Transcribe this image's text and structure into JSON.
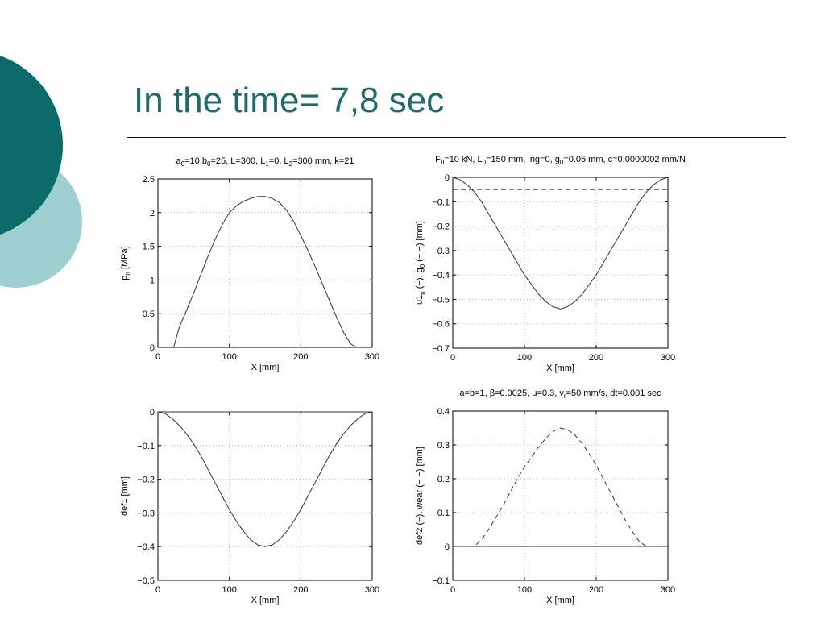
{
  "slide": {
    "title": "In the time= 7,8 sec",
    "colors": {
      "title": "#1f6b6b",
      "circle_dark": "#0b6b6b",
      "circle_light": "#9fd0d0"
    }
  },
  "chart_data": [
    {
      "id": "p1",
      "type": "line",
      "title_parts": [
        [
          "a",
          "0",
          "=10,b",
          "0",
          "=25, L=300, L",
          "1",
          "=0, L",
          "2",
          "=300 mm, k=21"
        ]
      ],
      "title": "a0=10,b0=25, L=300, L1=0, L2=300 mm, k=21",
      "xlabel": "X [mm]",
      "ylabel": "p_n [MPa]",
      "ylabel_main": "p",
      "ylabel_sub": "n",
      "ylabel_tail": " [MPa]",
      "xlim": [
        0,
        300
      ],
      "ylim": [
        0,
        2.5
      ],
      "xticks": [
        0,
        100,
        200,
        300
      ],
      "xtick_labels": [
        "0",
        "100",
        "200",
        "300"
      ],
      "yticks": [
        0,
        0.5,
        1,
        1.5,
        2,
        2.5
      ],
      "ytick_labels": [
        "0",
        "0.5",
        "1",
        "1.5",
        "2",
        "2.5"
      ],
      "grid": true,
      "series": [
        {
          "style": "solid",
          "x": [
            22,
            30,
            40,
            50,
            60,
            70,
            80,
            90,
            100,
            110,
            120,
            130,
            140,
            150,
            160,
            170,
            180,
            190,
            200,
            210,
            220,
            230,
            240,
            250,
            260,
            270,
            278
          ],
          "y": [
            0,
            0.3,
            0.55,
            0.8,
            1.08,
            1.35,
            1.6,
            1.82,
            2.0,
            2.1,
            2.17,
            2.21,
            2.24,
            2.24,
            2.21,
            2.15,
            2.04,
            1.87,
            1.66,
            1.44,
            1.2,
            0.95,
            0.7,
            0.45,
            0.22,
            0.05,
            0
          ]
        }
      ]
    },
    {
      "id": "p2",
      "type": "line",
      "title": "F0=10 kN, L0=150 mm, irig=0, g0=0.05 mm, c=0.0000002 mm/N",
      "title_parts": [
        [
          "F",
          "0",
          "=10 kN, L",
          "0",
          "=150 mm, irig=0, g",
          "0",
          "=0.05 mm, c=0.0000002 mm/N"
        ]
      ],
      "xlabel": "X [mm]",
      "ylabel": "u1_n (−), g_0 (− −) [mm]",
      "ylabel_main": "u1",
      "ylabel_sub": "n",
      "ylabel_tail": " (−), g",
      "ylabel_sub2": "0",
      "ylabel_tail2": " (− −) [mm]",
      "xlim": [
        0,
        300
      ],
      "ylim": [
        -0.7,
        0
      ],
      "xticks": [
        0,
        100,
        200,
        300
      ],
      "xtick_labels": [
        "0",
        "100",
        "200",
        "300"
      ],
      "yticks": [
        0,
        -0.1,
        -0.2,
        -0.3,
        -0.4,
        -0.5,
        -0.6,
        -0.7
      ],
      "ytick_labels": [
        "0",
        "−0.1",
        "−0.2",
        "−0.3",
        "−0.4",
        "−0.5",
        "−0.6",
        "−0.7"
      ],
      "grid": true,
      "series": [
        {
          "style": "solid",
          "x": [
            0,
            10,
            20,
            30,
            40,
            50,
            60,
            70,
            80,
            90,
            100,
            110,
            120,
            130,
            140,
            150,
            160,
            170,
            180,
            190,
            200,
            210,
            220,
            230,
            240,
            250,
            260,
            270,
            280,
            290,
            300
          ],
          "y": [
            0,
            -0.01,
            -0.03,
            -0.06,
            -0.1,
            -0.15,
            -0.2,
            -0.25,
            -0.3,
            -0.35,
            -0.4,
            -0.44,
            -0.48,
            -0.51,
            -0.53,
            -0.54,
            -0.53,
            -0.51,
            -0.48,
            -0.44,
            -0.4,
            -0.35,
            -0.3,
            -0.25,
            -0.2,
            -0.15,
            -0.1,
            -0.06,
            -0.03,
            -0.01,
            0
          ]
        },
        {
          "style": "dashed",
          "x": [
            0,
            300
          ],
          "y": [
            -0.05,
            -0.05
          ]
        }
      ]
    },
    {
      "id": "p3",
      "type": "line",
      "title": "",
      "xlabel": "X [mm]",
      "ylabel": "def1 [mm]",
      "ylabel_main": "def1 [mm]",
      "xlim": [
        0,
        300
      ],
      "ylim": [
        -0.5,
        0
      ],
      "xticks": [
        0,
        100,
        200,
        300
      ],
      "xtick_labels": [
        "0",
        "100",
        "200",
        "300"
      ],
      "yticks": [
        0,
        -0.1,
        -0.2,
        -0.3,
        -0.4,
        -0.5
      ],
      "ytick_labels": [
        "0",
        "−0.1",
        "−0.2",
        "−0.3",
        "−0.4",
        "−0.5"
      ],
      "grid": true,
      "series": [
        {
          "style": "solid",
          "x": [
            0,
            10,
            20,
            30,
            40,
            50,
            60,
            70,
            80,
            90,
            100,
            110,
            120,
            130,
            140,
            150,
            160,
            170,
            180,
            190,
            200,
            210,
            220,
            230,
            240,
            250,
            260,
            270,
            280,
            290,
            300
          ],
          "y": [
            0,
            -0.005,
            -0.02,
            -0.04,
            -0.065,
            -0.095,
            -0.13,
            -0.17,
            -0.21,
            -0.25,
            -0.29,
            -0.325,
            -0.355,
            -0.38,
            -0.395,
            -0.4,
            -0.395,
            -0.38,
            -0.355,
            -0.325,
            -0.29,
            -0.25,
            -0.21,
            -0.17,
            -0.13,
            -0.095,
            -0.065,
            -0.04,
            -0.02,
            -0.005,
            0
          ]
        },
        {
          "style": "solid",
          "x": [
            0,
            300
          ],
          "y": [
            0,
            0
          ]
        }
      ]
    },
    {
      "id": "p4",
      "type": "line",
      "title": "a=b=1, β=0.0025, μ=0.3, vr=50 mm/s, dt=0.001 sec",
      "title_parts": [
        [
          "a=b=1, β=0.0025, μ=0.3, v",
          "r",
          "=50 mm/s, dt=0.001 sec"
        ]
      ],
      "xlabel": "X [mm]",
      "ylabel": "def2 (−), wear (− −) [mm]",
      "ylabel_main": "def2 (−), wear (− −) [mm]",
      "xlim": [
        0,
        300
      ],
      "ylim": [
        -0.1,
        0.4
      ],
      "xticks": [
        0,
        100,
        200,
        300
      ],
      "xtick_labels": [
        "0",
        "100",
        "200",
        "300"
      ],
      "yticks": [
        -0.1,
        0,
        0.1,
        0.2,
        0.3,
        0.4
      ],
      "ytick_labels": [
        "−0.1",
        "0",
        "0.1",
        "0.2",
        "0.3",
        "0.4"
      ],
      "grid": true,
      "series": [
        {
          "style": "dashed",
          "x": [
            0,
            30,
            40,
            50,
            60,
            70,
            80,
            90,
            100,
            110,
            120,
            130,
            140,
            150,
            160,
            170,
            180,
            190,
            200,
            210,
            220,
            230,
            240,
            250,
            260,
            270,
            280,
            300
          ],
          "y": [
            0,
            0,
            0.02,
            0.05,
            0.085,
            0.12,
            0.16,
            0.2,
            0.235,
            0.265,
            0.295,
            0.32,
            0.34,
            0.35,
            0.345,
            0.33,
            0.305,
            0.275,
            0.24,
            0.2,
            0.16,
            0.12,
            0.08,
            0.045,
            0.015,
            0,
            0,
            0
          ]
        },
        {
          "style": "solid",
          "x": [
            0,
            300
          ],
          "y": [
            0,
            0
          ]
        }
      ]
    }
  ]
}
